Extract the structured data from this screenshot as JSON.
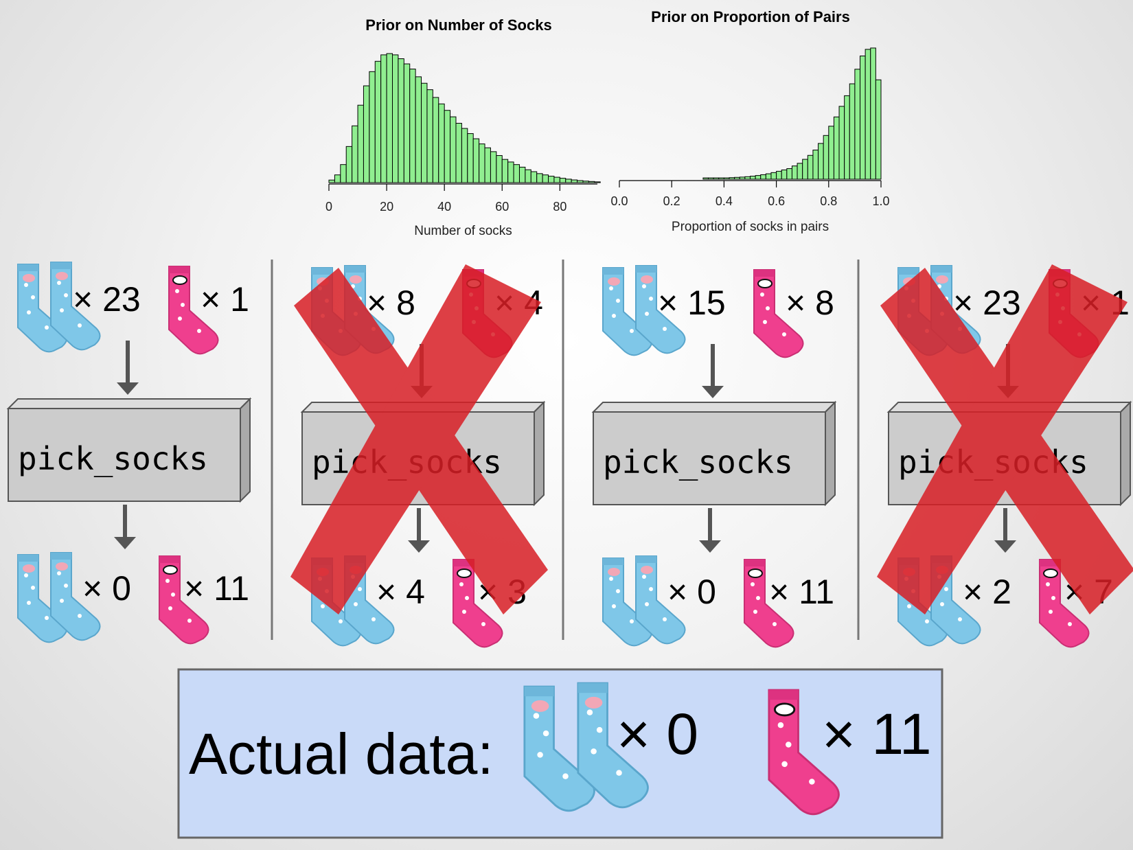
{
  "colors": {
    "bar_fill": "#90ee90",
    "blue_sock": "#7fc7e8",
    "pink_sock": "#ef3f8e",
    "cross": "#d81f26",
    "box_fill": "#cccccc",
    "actual_bg": "#c9daf8"
  },
  "chart_data": [
    {
      "type": "bar",
      "title": "Prior on Number of Socks",
      "xlabel": "Number of socks",
      "xticks": [
        "0",
        "20",
        "40",
        "60",
        "80"
      ],
      "xlim": [
        0,
        93
      ],
      "bin_width": 2,
      "x_start": 0,
      "values": [
        0.02,
        0.06,
        0.14,
        0.28,
        0.44,
        0.6,
        0.75,
        0.86,
        0.94,
        0.99,
        1.0,
        0.99,
        0.96,
        0.92,
        0.88,
        0.82,
        0.77,
        0.72,
        0.66,
        0.61,
        0.56,
        0.51,
        0.46,
        0.42,
        0.38,
        0.34,
        0.3,
        0.27,
        0.24,
        0.21,
        0.18,
        0.16,
        0.14,
        0.12,
        0.1,
        0.085,
        0.07,
        0.06,
        0.05,
        0.042,
        0.034,
        0.027,
        0.021,
        0.016,
        0.012,
        0.009,
        0.006
      ]
    },
    {
      "type": "bar",
      "title": "Prior on Proportion of Pairs",
      "xlabel": "Proportion of socks in pairs",
      "xticks": [
        "0.0",
        "0.2",
        "0.4",
        "0.6",
        "0.8",
        "1.0"
      ],
      "xlim": [
        0,
        1
      ],
      "bin_width": 0.02,
      "x_start": 0.32,
      "values": [
        0.01,
        0.01,
        0.01,
        0.01,
        0.01,
        0.012,
        0.014,
        0.016,
        0.019,
        0.023,
        0.028,
        0.034,
        0.041,
        0.05,
        0.06,
        0.07,
        0.08,
        0.1,
        0.12,
        0.15,
        0.18,
        0.22,
        0.27,
        0.33,
        0.4,
        0.47,
        0.55,
        0.63,
        0.72,
        0.83,
        0.93,
        0.98,
        0.99,
        0.75
      ]
    }
  ],
  "function_label": "pick_socks",
  "simulations": [
    {
      "pairs": "× 23",
      "singles": "× 1",
      "out_pairs": "× 0",
      "out_singles": "× 11",
      "rejected": false
    },
    {
      "pairs": "× 8",
      "singles": "× 4",
      "out_pairs": "× 4",
      "out_singles": "× 3",
      "rejected": true
    },
    {
      "pairs": "× 15",
      "singles": "× 8",
      "out_pairs": "× 0",
      "out_singles": "× 11",
      "rejected": false
    },
    {
      "pairs": "× 23",
      "singles": "× 1",
      "out_pairs": "× 2",
      "out_singles": "× 7",
      "rejected": true
    }
  ],
  "actual": {
    "label": "Actual data:",
    "pairs": "× 0",
    "singles": "× 11"
  }
}
